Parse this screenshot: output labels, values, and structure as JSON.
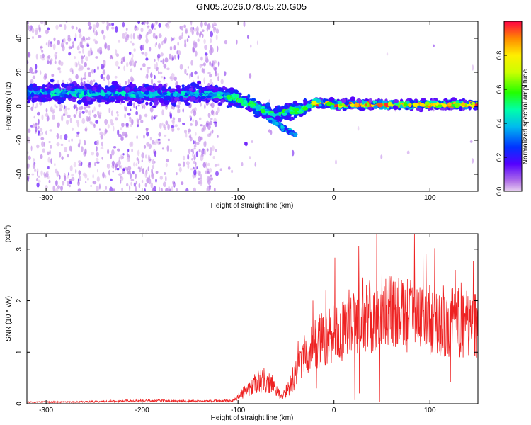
{
  "title": "GN05.2026.078.05.20.G05",
  "chart_data": [
    {
      "type": "heatmap",
      "name": "spectrogram",
      "xlabel": "Height of straight line (km)",
      "ylabel": "Frequency (Hz)",
      "xlim": [
        -320,
        150
      ],
      "ylim": [
        -50,
        50
      ],
      "x_ticks": [
        -300,
        -200,
        -100,
        0,
        100
      ],
      "y_ticks": [
        -40,
        -20,
        0,
        20,
        40
      ],
      "colorbar": {
        "label": "Normalized spectral amplitude",
        "range": [
          0,
          1
        ],
        "ticks": [
          0.0,
          0.2,
          0.4,
          0.6,
          0.8
        ]
      },
      "ridge": [
        {
          "x": -320,
          "y": 8
        },
        {
          "x": -200,
          "y": 7
        },
        {
          "x": -140,
          "y": 7
        },
        {
          "x": -110,
          "y": 6
        },
        {
          "x": -90,
          "y": 2
        },
        {
          "x": -75,
          "y": -2
        },
        {
          "x": -62,
          "y": -6
        },
        {
          "x": -50,
          "y": -3
        },
        {
          "x": -35,
          "y": -2
        },
        {
          "x": -20,
          "y": 2
        },
        {
          "x": 0,
          "y": 1
        },
        {
          "x": 150,
          "y": 1
        }
      ],
      "branch": [
        {
          "x": -70,
          "y": -6
        },
        {
          "x": -55,
          "y": -12
        },
        {
          "x": -40,
          "y": -17
        }
      ]
    },
    {
      "type": "line",
      "name": "snr",
      "xlabel": "Height of straight line (km)",
      "ylabel": "SNR (10 * v/v)",
      "multiplier_label": "(x10",
      "multiplier_exp": "4",
      "multiplier_close": ")",
      "xlim": [
        -320,
        150
      ],
      "ylim": [
        0,
        3.3
      ],
      "x_ticks": [
        -300,
        -200,
        -100,
        0,
        100
      ],
      "y_ticks": [
        0,
        1,
        2,
        3
      ],
      "color": "#ee2222",
      "envelope": [
        {
          "x": -320,
          "y": 0.03
        },
        {
          "x": -250,
          "y": 0.04
        },
        {
          "x": -200,
          "y": 0.06
        },
        {
          "x": -150,
          "y": 0.05
        },
        {
          "x": -105,
          "y": 0.06
        },
        {
          "x": -90,
          "y": 0.25
        },
        {
          "x": -75,
          "y": 0.42
        },
        {
          "x": -65,
          "y": 0.35
        },
        {
          "x": -55,
          "y": 0.1
        },
        {
          "x": -45,
          "y": 0.35
        },
        {
          "x": -30,
          "y": 0.95
        },
        {
          "x": -10,
          "y": 1.25
        },
        {
          "x": 10,
          "y": 1.35
        },
        {
          "x": 30,
          "y": 1.55
        },
        {
          "x": 50,
          "y": 1.7
        },
        {
          "x": 70,
          "y": 1.65
        },
        {
          "x": 90,
          "y": 1.6
        },
        {
          "x": 110,
          "y": 1.55
        },
        {
          "x": 130,
          "y": 1.5
        },
        {
          "x": 150,
          "y": 1.5
        }
      ]
    }
  ]
}
